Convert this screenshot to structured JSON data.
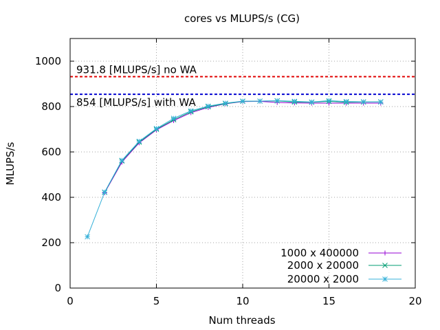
{
  "chart_data": {
    "type": "line",
    "title": "cores vs MLUPS/s (CG)",
    "xlabel": "Num threads",
    "ylabel": "MLUPS/s",
    "xlim": [
      0,
      20
    ],
    "ylim": [
      0,
      1100
    ],
    "xticks": [
      "0",
      "5",
      "10",
      "15",
      "20"
    ],
    "yticks": [
      "0",
      "200",
      "400",
      "600",
      "800",
      "1000"
    ],
    "grid": true,
    "legend_position": "bottom-right",
    "reference_lines": [
      {
        "label": "931.8 [MLUPS/s] no WA",
        "value": 931.8,
        "color": "#e00000"
      },
      {
        "label": "854 [MLUPS/s] with WA",
        "value": 854,
        "color": "#0000d0"
      }
    ],
    "series": [
      {
        "name": "1000 x 400000",
        "color": "#9400d3",
        "marker": "plus",
        "x": [
          2,
          3,
          4,
          5,
          6,
          7,
          8,
          9,
          10,
          11,
          12,
          13,
          14,
          15,
          16,
          17,
          18
        ],
        "y": [
          420,
          555,
          640,
          697,
          738,
          773,
          796,
          812,
          822,
          823,
          818,
          816,
          815,
          815,
          815,
          815,
          815
        ]
      },
      {
        "name": "2000 x 20000",
        "color": "#009e73",
        "marker": "cross",
        "x": [
          2,
          3,
          4,
          5,
          6,
          7,
          8,
          9,
          10,
          11,
          12,
          13,
          14,
          15,
          16,
          17,
          18
        ],
        "y": [
          422,
          560,
          643,
          700,
          742,
          777,
          799,
          813,
          823,
          824,
          825,
          820,
          819,
          823,
          819,
          820,
          821
        ]
      },
      {
        "name": "20000 x 2000",
        "color": "#35b0d8",
        "marker": "star",
        "x": [
          1,
          2,
          3,
          4,
          5,
          6,
          7,
          8,
          9,
          10,
          11,
          12,
          13,
          14,
          15,
          16,
          17,
          18
        ],
        "y": [
          226,
          423,
          563,
          647,
          703,
          748,
          781,
          802,
          815,
          824,
          824,
          826,
          823,
          820,
          826,
          822,
          821,
          820
        ]
      }
    ]
  }
}
